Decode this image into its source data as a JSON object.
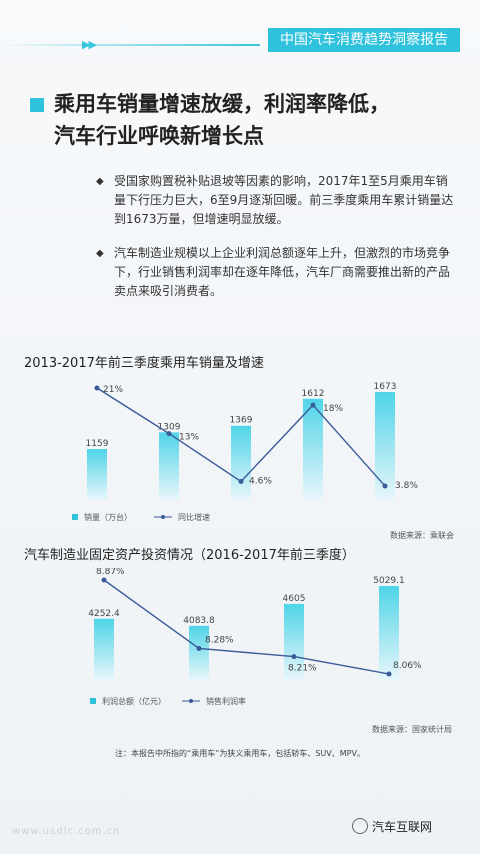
{
  "header": {
    "tag": "中国汽车消费趋势洞察报告"
  },
  "title": {
    "line1": "乘用车销量增速放缓，利润率降低，",
    "line2": "汽车行业呼唤新增长点"
  },
  "bullets": [
    {
      "text": "受国家购置税补贴退坡等因素的影响，2017年1至5月乘用车销量下行压力巨大，6至9月逐渐回暖。前三季度乘用车累计销量达到1673万量，但增速明显放缓。"
    },
    {
      "text": "汽车制造业规模以上企业利润总额逐年上升，但激烈的市场竞争下，行业销售利润率却在逐年降低，汽车厂商需要推出新的产品卖点来吸引消费者。"
    }
  ],
  "chart_data": [
    {
      "type": "bar",
      "title": "2013-2017年前三季度乘用车销量及增速",
      "categories": [
        "",
        "",
        "",
        "",
        ""
      ],
      "series": [
        {
          "name": "销量（万台）",
          "values": [
            1159,
            1309,
            1369,
            1612,
            1673
          ],
          "labels": [
            "1159",
            "1309",
            "1369",
            "1612",
            "1673"
          ]
        },
        {
          "name": "同比增速",
          "values": [
            21,
            13,
            4.6,
            18,
            3.8
          ],
          "labels": [
            "21%",
            "13%",
            "4.6%",
            "18%",
            "3.8%"
          ]
        }
      ],
      "legend": [
        "销量（万台）",
        "同比增速"
      ],
      "source": "数据来源：乘联会"
    },
    {
      "type": "bar",
      "title": "汽车制造业固定资产投资情况（2016-2017年前三季度）",
      "categories": [
        "",
        "",
        "",
        ""
      ],
      "series": [
        {
          "name": "利润总额（亿元）",
          "values": [
            4252.4,
            4083.8,
            4605,
            5029.1
          ],
          "labels": [
            "4252.4",
            "4083.8",
            "4605",
            "5029.1"
          ]
        },
        {
          "name": "销售利润率",
          "values": [
            8.87,
            8.28,
            8.21,
            8.06
          ],
          "labels": [
            "8.87%",
            "8.28%",
            "8.21%",
            "8.06%"
          ]
        }
      ],
      "legend": [
        "利润总额（亿元）",
        "销售利润率"
      ],
      "source": "数据来源：国家统计局"
    }
  ],
  "footnote": "注：本报告中所指的“乘用车”为狭义乘用车，包括轿车、SUV、MPV。",
  "watermark": "www.usdlc.com.cn",
  "brand": "汽车互联网",
  "colors": {
    "accent": "#2fc2dc",
    "line": "#3a5a9a",
    "bar_top": "#4fd4e8",
    "bar_bottom": "#e8f6fa"
  }
}
